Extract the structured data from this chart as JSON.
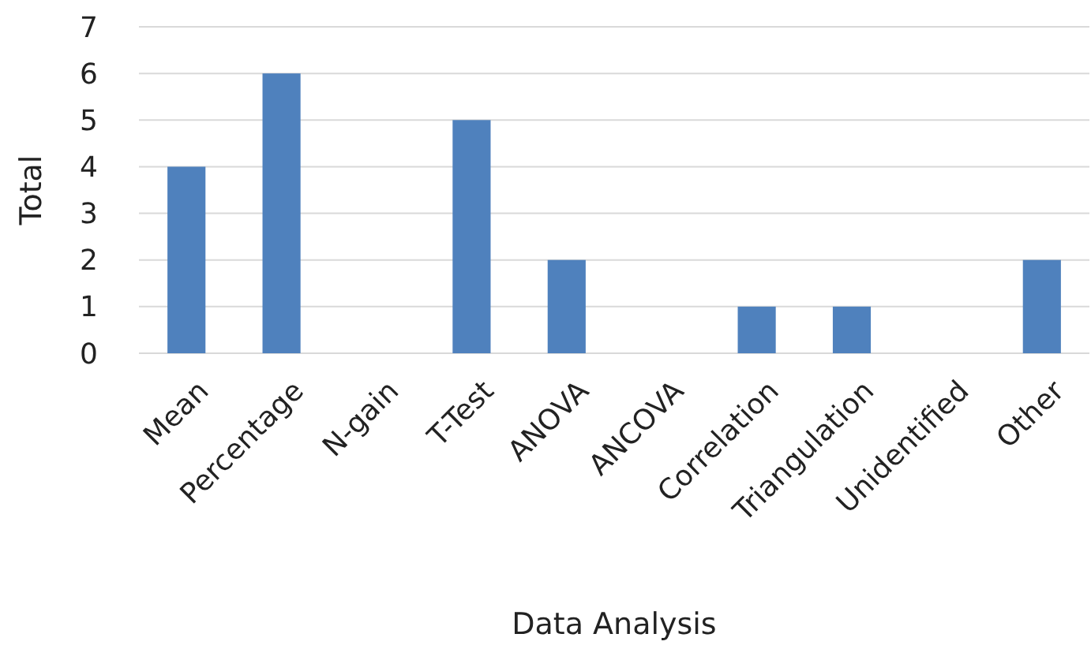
{
  "chart_data": {
    "type": "bar",
    "xlabel": "Data Analysis",
    "ylabel": "Total",
    "categories": [
      "Mean",
      "Percentage",
      "N-gain",
      "T-Test",
      "ANOVA",
      "ANCOVA",
      "Correlation",
      "Triangulation",
      "Unidentified",
      "Other"
    ],
    "values": [
      4,
      6,
      0,
      5,
      2,
      0,
      1,
      1,
      0,
      2
    ],
    "color": "#4f81bd",
    "ylim": [
      0,
      7
    ],
    "yticks": [
      0,
      1,
      2,
      3,
      4,
      5,
      6,
      7
    ],
    "grid": "y"
  }
}
